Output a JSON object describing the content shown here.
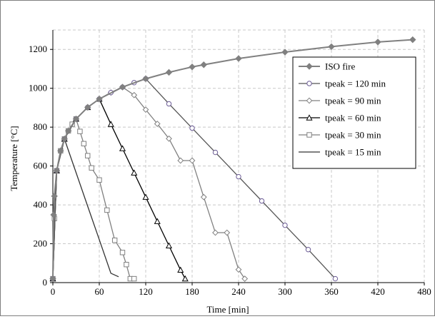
{
  "chart_data": {
    "type": "line",
    "xlabel": "Time [min]",
    "ylabel": "Temperature [°C]",
    "xlim": [
      0,
      480
    ],
    "ylim": [
      0,
      1300
    ],
    "xticks": [
      0,
      60,
      120,
      180,
      240,
      300,
      360,
      420,
      480
    ],
    "yticks": [
      0,
      200,
      400,
      600,
      800,
      1000,
      1200
    ],
    "grid": true,
    "legend_position": "top-right",
    "series": [
      {
        "name": "ISO fire",
        "color": "#808080",
        "marker": "diamond-filled",
        "x": [
          0,
          1,
          2,
          5,
          10,
          15,
          20,
          30,
          45,
          60,
          90,
          120,
          150,
          180,
          195,
          240,
          300,
          360,
          420,
          465
        ],
        "y": [
          20,
          349,
          445,
          576,
          678,
          739,
          781,
          842,
          902,
          945,
          1006,
          1049,
          1082,
          1110,
          1121,
          1153,
          1186,
          1214,
          1238,
          1250
        ]
      },
      {
        "name": "tpeak = 120 min",
        "color": "#555555",
        "marker": "circle-open",
        "x": [
          0,
          5,
          15,
          30,
          45,
          60,
          75,
          90,
          105,
          120,
          150,
          180,
          210,
          240,
          270,
          300,
          330,
          365
        ],
        "y": [
          20,
          576,
          739,
          842,
          902,
          945,
          978,
          1006,
          1029,
          1049,
          920,
          795,
          670,
          545,
          420,
          295,
          170,
          20
        ]
      },
      {
        "name": "tpeak = 90 min",
        "color": "#808080",
        "marker": "diamond-open",
        "x": [
          0,
          5,
          15,
          30,
          45,
          60,
          75,
          90,
          105,
          120,
          135,
          150,
          165,
          180,
          195,
          210,
          225,
          240,
          248
        ],
        "y": [
          20,
          576,
          739,
          842,
          902,
          945,
          978,
          1006,
          965,
          890,
          817,
          741,
          628,
          628,
          440,
          257,
          257,
          67,
          20
        ]
      },
      {
        "name": "tpeak = 60 min",
        "color": "#000000",
        "marker": "triangle-open",
        "x": [
          0,
          5,
          15,
          30,
          45,
          60,
          75,
          90,
          105,
          120,
          135,
          150,
          165,
          171
        ],
        "y": [
          20,
          576,
          739,
          842,
          902,
          945,
          815,
          690,
          565,
          440,
          315,
          190,
          65,
          20
        ]
      },
      {
        "name": "tpeak = 30 min",
        "color": "#808080",
        "marker": "square-open",
        "x": [
          0,
          2,
          5,
          10,
          15,
          20,
          25,
          30,
          35,
          40,
          45,
          50,
          60,
          70,
          80,
          90,
          95,
          100,
          105
        ],
        "y": [
          20,
          330,
          576,
          678,
          739,
          781,
          815,
          842,
          778,
          715,
          653,
          590,
          528,
          373,
          218,
          155,
          93,
          20,
          20
        ]
      },
      {
        "name": "tpeak = 15 min",
        "color": "#333333",
        "marker": "none",
        "x": [
          0,
          2,
          5,
          10,
          15,
          30,
          45,
          60,
          75,
          85
        ],
        "y": [
          20,
          445,
          576,
          678,
          739,
          566,
          393,
          221,
          48,
          30
        ]
      }
    ]
  }
}
